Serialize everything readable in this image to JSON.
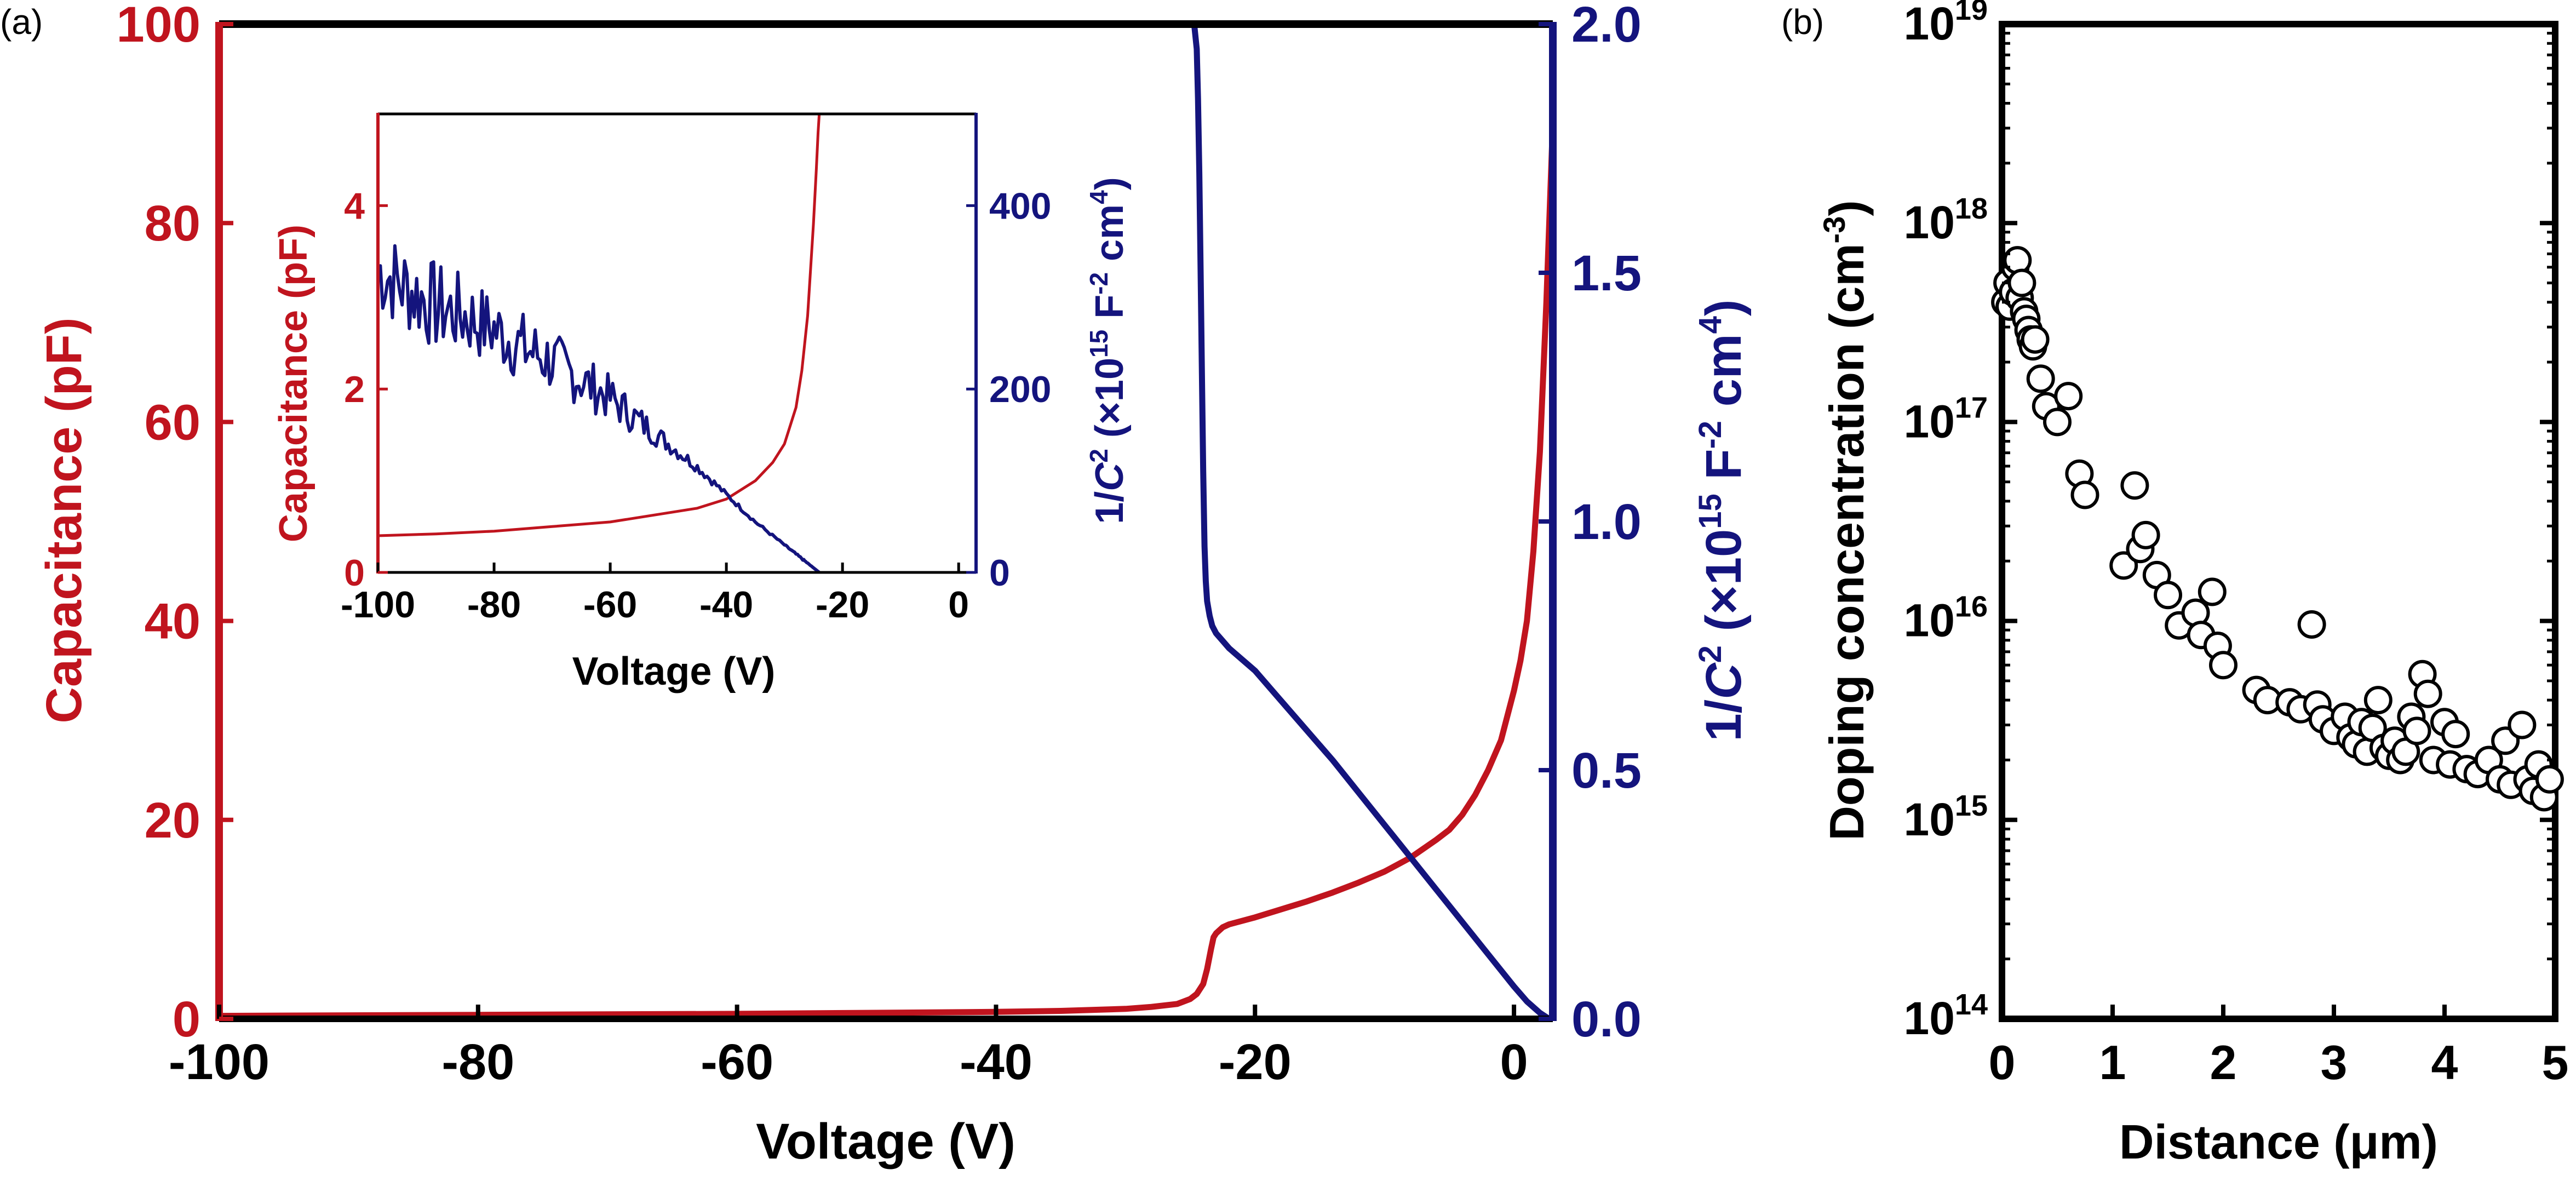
{
  "colors": {
    "red": "#c0141e",
    "blue": "#14147d",
    "black": "#000000"
  },
  "panels": [
    {
      "label": "(a)",
      "type": "line",
      "xlabel": "Voltage (V)",
      "ylabel_left": "Capacitance (pF)",
      "ylabel_right": {
        "pre": "1/",
        "var": "C",
        "sup1": "2",
        "mid": " (×10",
        "sup2": "15",
        "post1": " F",
        "sup3": "-2",
        "post2": " cm",
        "sup4": "4",
        "close": ")"
      },
      "xlim": [
        -100,
        3
      ],
      "ylim_left": [
        0,
        100
      ],
      "ylim_right": [
        0,
        2.0
      ],
      "xticks": [
        "-100",
        "-80",
        "-60",
        "-40",
        "-20",
        "0"
      ],
      "yticks_left": [
        "0",
        "20",
        "40",
        "60",
        "80",
        "100"
      ],
      "yticks_right": [
        "0.0",
        "0.5",
        "1.0",
        "1.5",
        "2.0"
      ],
      "series": [
        {
          "axis": "left",
          "color": "red",
          "x": [
            -100,
            -90,
            -80,
            -70,
            -60,
            -50,
            -40,
            -35,
            -30,
            -28,
            -26,
            -25,
            -24.5,
            -24,
            -23.7,
            -23.4,
            -23.2,
            -23,
            -22.5,
            -22,
            -20,
            -18,
            -16,
            -14,
            -12,
            -10,
            -8,
            -6,
            -5,
            -4,
            -3,
            -2,
            -1,
            0,
            0.5,
            1,
            1.5,
            2,
            2.5,
            3
          ],
          "y": [
            0.3,
            0.35,
            0.4,
            0.45,
            0.5,
            0.6,
            0.7,
            0.8,
            1.0,
            1.2,
            1.5,
            2.0,
            2.5,
            3.5,
            5,
            7,
            8.2,
            8.6,
            9.2,
            9.5,
            10.2,
            11,
            11.8,
            12.7,
            13.7,
            14.8,
            16.2,
            18,
            19,
            20.5,
            22.5,
            25,
            28,
            33,
            36,
            40,
            47,
            57,
            72,
            90
          ]
        },
        {
          "axis": "right",
          "color": "blue",
          "x": [
            -24.7,
            -24.5,
            -24.4,
            -24.3,
            -24.2,
            -24.1,
            -24,
            -23.9,
            -23.8,
            -23.7,
            -23.5,
            -23.3,
            -23,
            -22.5,
            -22,
            -20,
            -18,
            -16,
            -14,
            -12,
            -10,
            -8,
            -6,
            -4,
            -2,
            0,
            1,
            2,
            2.7
          ],
          "y": [
            2.0,
            1.95,
            1.85,
            1.7,
            1.5,
            1.3,
            1.1,
            0.95,
            0.88,
            0.84,
            0.81,
            0.79,
            0.775,
            0.76,
            0.745,
            0.7,
            0.64,
            0.58,
            0.52,
            0.455,
            0.39,
            0.325,
            0.26,
            0.195,
            0.13,
            0.065,
            0.035,
            0.012,
            0.0
          ]
        }
      ]
    },
    {
      "type": "line",
      "xlabel": "Voltage (V)",
      "ylabel_left": "Capacitance (pF)",
      "ylabel_right": {
        "pre": "1/",
        "var": "C",
        "sup1": "2",
        "mid": " (×10",
        "sup2": "15",
        "post1": " F",
        "sup3": "-2",
        "post2": " cm",
        "sup4": "4",
        "close": ")"
      },
      "xlim": [
        -100,
        3
      ],
      "ylim_left": [
        0,
        5
      ],
      "ylim_right": [
        0,
        500
      ],
      "xticks": [
        "-100",
        "-80",
        "-60",
        "-40",
        "-20",
        "0"
      ],
      "yticks_left": [
        "0",
        "2",
        "4"
      ],
      "yticks_right": [
        "0",
        "200",
        "400"
      ],
      "series": [
        {
          "axis": "left",
          "color": "red",
          "x": [
            -100,
            -90,
            -80,
            -70,
            -60,
            -50,
            -45,
            -40,
            -35,
            -32,
            -30,
            -28,
            -27,
            -26,
            -25.5,
            -25,
            -24.5,
            -24.2,
            -24
          ],
          "y": [
            0.4,
            0.42,
            0.45,
            0.5,
            0.55,
            0.65,
            0.7,
            0.8,
            1.0,
            1.2,
            1.4,
            1.8,
            2.2,
            2.8,
            3.3,
            3.8,
            4.4,
            4.8,
            5.0
          ]
        },
        {
          "axis": "right",
          "color": "blue",
          "x": [
            -100,
            -95,
            -90,
            -85,
            -80,
            -75,
            -70,
            -65,
            -60,
            -55,
            -50,
            -45,
            -40,
            -35,
            -30,
            -27,
            -25,
            -24
          ],
          "y": [
            330,
            310,
            290,
            280,
            265,
            245,
            230,
            210,
            190,
            165,
            140,
            115,
            85,
            55,
            30,
            15,
            5,
            0
          ],
          "noise": [
            50,
            50,
            50,
            45,
            40,
            40,
            35,
            30,
            25,
            18,
            10,
            6,
            3,
            2,
            1,
            1,
            0,
            0
          ]
        }
      ]
    },
    {
      "label": "(b)",
      "type": "scatter",
      "xlabel": "Distance (μm)",
      "ylabel": "Doping concentration (cm",
      "ylabel_sup": "-3",
      "ylabel_close": ")",
      "xlim": [
        0,
        5
      ],
      "ylim": [
        100000000000000.0,
        1e+19
      ],
      "yscale": "log",
      "xticks": [
        "0",
        "1",
        "2",
        "3",
        "4",
        "5"
      ],
      "yticks_base": "10",
      "yticks_exp": [
        "14",
        "15",
        "16",
        "17",
        "18",
        "19"
      ],
      "x": [
        0.03,
        0.05,
        0.07,
        0.1,
        0.12,
        0.14,
        0.16,
        0.18,
        0.2,
        0.22,
        0.24,
        0.26,
        0.28,
        0.3,
        0.35,
        0.4,
        0.5,
        0.6,
        0.7,
        0.75,
        1.1,
        1.2,
        1.25,
        1.3,
        1.4,
        1.5,
        1.6,
        1.75,
        1.8,
        1.9,
        1.95,
        2.0,
        2.3,
        2.4,
        2.6,
        2.7,
        2.8,
        2.85,
        2.9,
        3.0,
        3.1,
        3.15,
        3.2,
        3.25,
        3.3,
        3.35,
        3.4,
        3.45,
        3.5,
        3.55,
        3.6,
        3.65,
        3.7,
        3.75,
        3.8,
        3.85,
        3.9,
        4.0,
        4.05,
        4.1,
        4.2,
        4.3,
        4.4,
        4.5,
        4.55,
        4.6,
        4.7,
        4.75,
        4.8,
        4.85,
        4.9,
        4.95
      ],
      "y": [
        4e+17,
        5e+17,
        3.8e+17,
        4.5e+17,
        6e+17,
        6.5e+17,
        4.2e+17,
        5e+17,
        3.6e+17,
        3.3e+17,
        2.9e+17,
        2.6e+17,
        2.4e+17,
        2.6e+17,
        1.65e+17,
        1.2e+17,
        1e+17,
        1.35e+17,
        5.5e+16,
        4.3e+16,
        1.9e+16,
        4.8e+16,
        2.3e+16,
        2.7e+16,
        1.7e+16,
        1.35e+16,
        9500000000000000.0,
        1.1e+16,
        8500000000000000.0,
        1.4e+16,
        7500000000000000.0,
        6000000000000000.0,
        4500000000000000.0,
        4000000000000000.0,
        3900000000000000.0,
        3600000000000000.0,
        9600000000000000.0,
        3800000000000000.0,
        3200000000000000.0,
        2800000000000000.0,
        3300000000000000.0,
        2600000000000000.0,
        2400000000000000.0,
        3100000000000000.0,
        2200000000000000.0,
        2900000000000000.0,
        4000000000000000.0,
        2300000000000000.0,
        2100000000000000.0,
        2500000000000000.0,
        2000000000000000.0,
        2200000000000000.0,
        3300000000000000.0,
        2800000000000000.0,
        5400000000000000.0,
        4300000000000000.0,
        2000000000000000.0,
        3100000000000000.0,
        1900000000000000.0,
        2700000000000000.0,
        1800000000000000.0,
        1700000000000000.0,
        2000000000000000.0,
        1600000000000000.0,
        2500000000000000.0,
        1500000000000000.0,
        3000000000000000.0,
        1600000000000000.0,
        1400000000000000.0,
        1900000000000000.0,
        1300000000000000.0,
        1600000000000000.0
      ]
    }
  ]
}
